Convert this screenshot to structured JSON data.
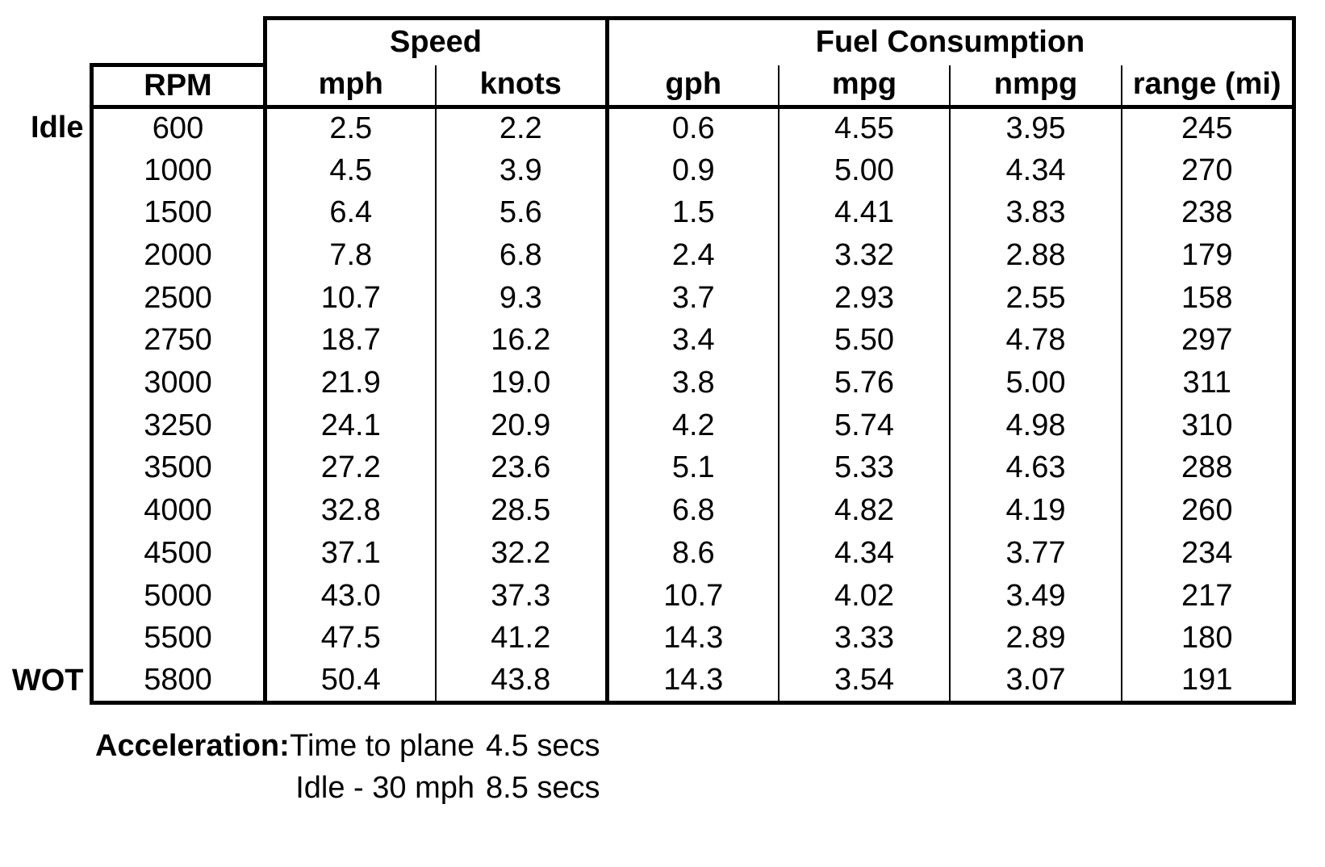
{
  "colors": {
    "background": "#ffffff",
    "text": "#000000",
    "border": "#000000"
  },
  "table": {
    "group_headers": [
      {
        "label": "Speed",
        "colspan": 2
      },
      {
        "label": "Fuel Consumption",
        "colspan": 4
      }
    ],
    "columns": [
      "RPM",
      "mph",
      "knots",
      "gph",
      "mpg",
      "nmpg",
      "range (mi)"
    ],
    "rows": [
      {
        "label": "Idle",
        "values": [
          "600",
          "2.5",
          "2.2",
          "0.6",
          "4.55",
          "3.95",
          "245"
        ]
      },
      {
        "label": "",
        "values": [
          "1000",
          "4.5",
          "3.9",
          "0.9",
          "5.00",
          "4.34",
          "270"
        ]
      },
      {
        "label": "",
        "values": [
          "1500",
          "6.4",
          "5.6",
          "1.5",
          "4.41",
          "3.83",
          "238"
        ]
      },
      {
        "label": "",
        "values": [
          "2000",
          "7.8",
          "6.8",
          "2.4",
          "3.32",
          "2.88",
          "179"
        ]
      },
      {
        "label": "",
        "values": [
          "2500",
          "10.7",
          "9.3",
          "3.7",
          "2.93",
          "2.55",
          "158"
        ]
      },
      {
        "label": "",
        "values": [
          "2750",
          "18.7",
          "16.2",
          "3.4",
          "5.50",
          "4.78",
          "297"
        ]
      },
      {
        "label": "",
        "values": [
          "3000",
          "21.9",
          "19.0",
          "3.8",
          "5.76",
          "5.00",
          "311"
        ]
      },
      {
        "label": "",
        "values": [
          "3250",
          "24.1",
          "20.9",
          "4.2",
          "5.74",
          "4.98",
          "310"
        ]
      },
      {
        "label": "",
        "values": [
          "3500",
          "27.2",
          "23.6",
          "5.1",
          "5.33",
          "4.63",
          "288"
        ]
      },
      {
        "label": "",
        "values": [
          "4000",
          "32.8",
          "28.5",
          "6.8",
          "4.82",
          "4.19",
          "260"
        ]
      },
      {
        "label": "",
        "values": [
          "4500",
          "37.1",
          "32.2",
          "8.6",
          "4.34",
          "3.77",
          "234"
        ]
      },
      {
        "label": "",
        "values": [
          "5000",
          "43.0",
          "37.3",
          "10.7",
          "4.02",
          "3.49",
          "217"
        ]
      },
      {
        "label": "",
        "values": [
          "5500",
          "47.5",
          "41.2",
          "14.3",
          "3.33",
          "2.89",
          "180"
        ]
      },
      {
        "label": "WOT",
        "values": [
          "5800",
          "50.4",
          "43.8",
          "14.3",
          "3.54",
          "3.07",
          "191"
        ]
      }
    ]
  },
  "acceleration": {
    "heading": "Acceleration:",
    "items": [
      {
        "name": "Time to plane",
        "value": "4.5 secs"
      },
      {
        "name": "Idle - 30 mph",
        "value": "8.5 secs"
      }
    ]
  }
}
